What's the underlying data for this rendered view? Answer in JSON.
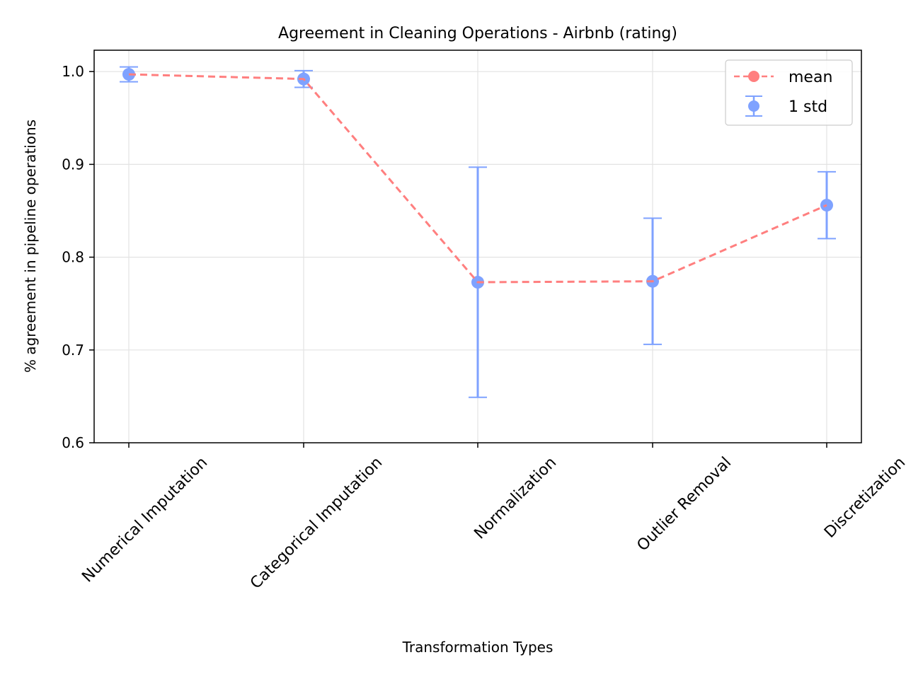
{
  "chart_data": {
    "type": "line",
    "title": "Agreement in Cleaning Operations - Airbnb (rating)",
    "xlabel": "Transformation Types",
    "ylabel": "% agreement in pipeline operations",
    "categories": [
      "Numerical Imputation",
      "Categorical Imputation",
      "Normalization",
      "Outlier Removal",
      "Discretization"
    ],
    "ylim": [
      0.6,
      1.023
    ],
    "yticks": [
      0.6,
      0.7,
      0.8,
      0.9,
      1.0
    ],
    "ytick_labels": [
      "0.6",
      "0.7",
      "0.8",
      "0.9",
      "1.0"
    ],
    "grid": true,
    "legend_position": "top-right",
    "series": [
      {
        "name": "mean",
        "style": "dashed-line-with-markers",
        "color": "#ff7f7f",
        "values": [
          0.997,
          0.992,
          0.773,
          0.774,
          0.856
        ]
      },
      {
        "name": "1 std",
        "style": "errorbar",
        "color": "#7fa2ff",
        "values": [
          0.997,
          0.992,
          0.773,
          0.774,
          0.856
        ],
        "std": [
          0.008,
          0.009,
          0.124,
          0.068,
          0.036
        ]
      }
    ]
  }
}
